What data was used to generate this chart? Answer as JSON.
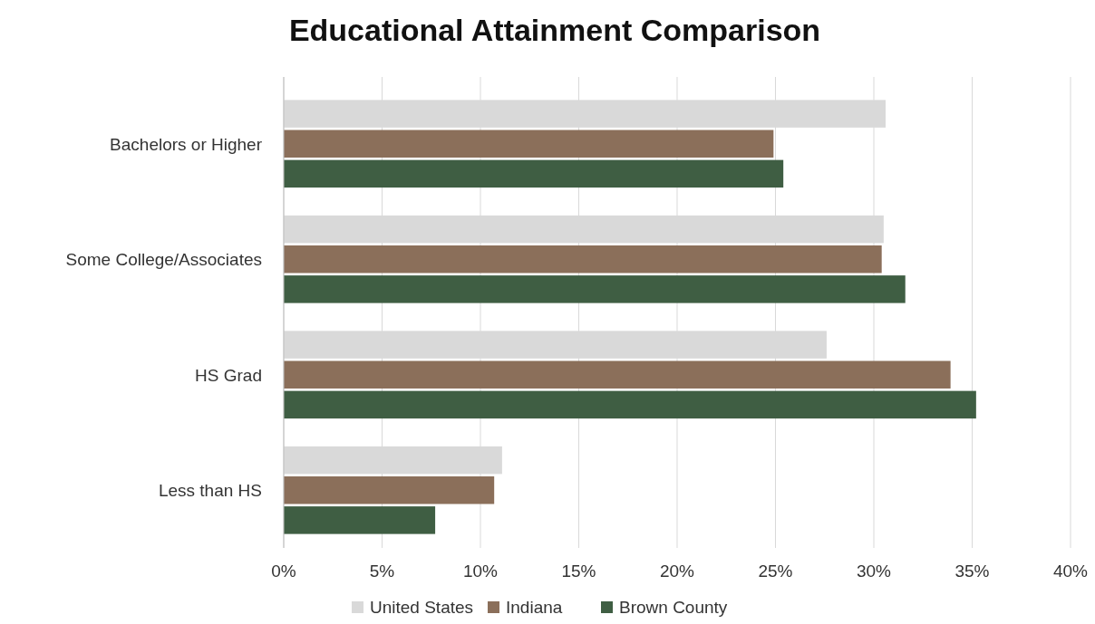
{
  "chart_data": {
    "type": "bar",
    "orientation": "horizontal",
    "title": "Educational Attainment Comparison",
    "categories": [
      "Bachelors or Higher",
      "Some College/Associates",
      "HS Grad",
      "Less than HS"
    ],
    "series": [
      {
        "name": "United States",
        "color": "#d9d9d9",
        "values": [
          30.6,
          30.5,
          27.6,
          11.1
        ]
      },
      {
        "name": "Indiana",
        "color": "#8b6f5a",
        "values": [
          24.9,
          30.4,
          33.9,
          10.7
        ]
      },
      {
        "name": "Brown County",
        "color": "#3f5e43",
        "values": [
          25.4,
          31.6,
          35.2,
          7.7
        ]
      }
    ],
    "xlim": [
      0,
      40
    ],
    "xticks": [
      {
        "value": 0,
        "label": "0%"
      },
      {
        "value": 5,
        "label": "5%"
      },
      {
        "value": 10,
        "label": "10%"
      },
      {
        "value": 15,
        "label": "15%"
      },
      {
        "value": 20,
        "label": "20%"
      },
      {
        "value": 25,
        "label": "25%"
      },
      {
        "value": 30,
        "label": "30%"
      },
      {
        "value": 35,
        "label": "35%"
      },
      {
        "value": 40,
        "label": "40%"
      }
    ],
    "grid": "x",
    "legend": "bottom"
  }
}
